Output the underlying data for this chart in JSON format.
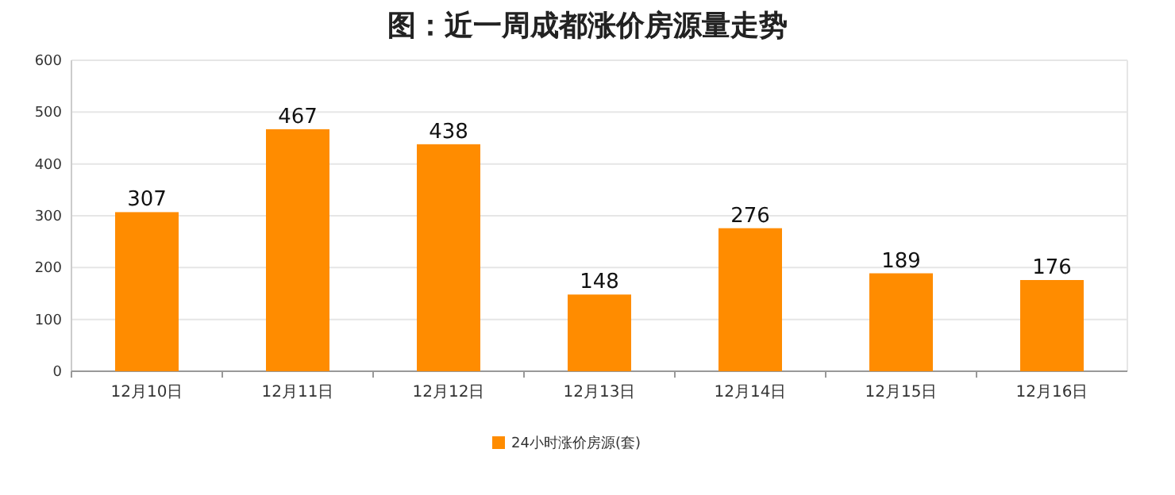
{
  "chart_data": {
    "type": "bar",
    "title": "图：近一周成都涨价房源量走势",
    "categories": [
      "12月10日",
      "12月11日",
      "12月12日",
      "12月13日",
      "12月14日",
      "12月15日",
      "12月16日"
    ],
    "series": [
      {
        "name": "24小时涨价房源(套)",
        "color": "#ff8c00",
        "values": [
          307,
          467,
          438,
          148,
          276,
          189,
          176
        ]
      }
    ],
    "ylim": [
      0,
      600
    ],
    "yticks": [
      0,
      100,
      200,
      300,
      400,
      500,
      600
    ],
    "grid": "y",
    "legend": "bottom",
    "data_labels": true
  }
}
